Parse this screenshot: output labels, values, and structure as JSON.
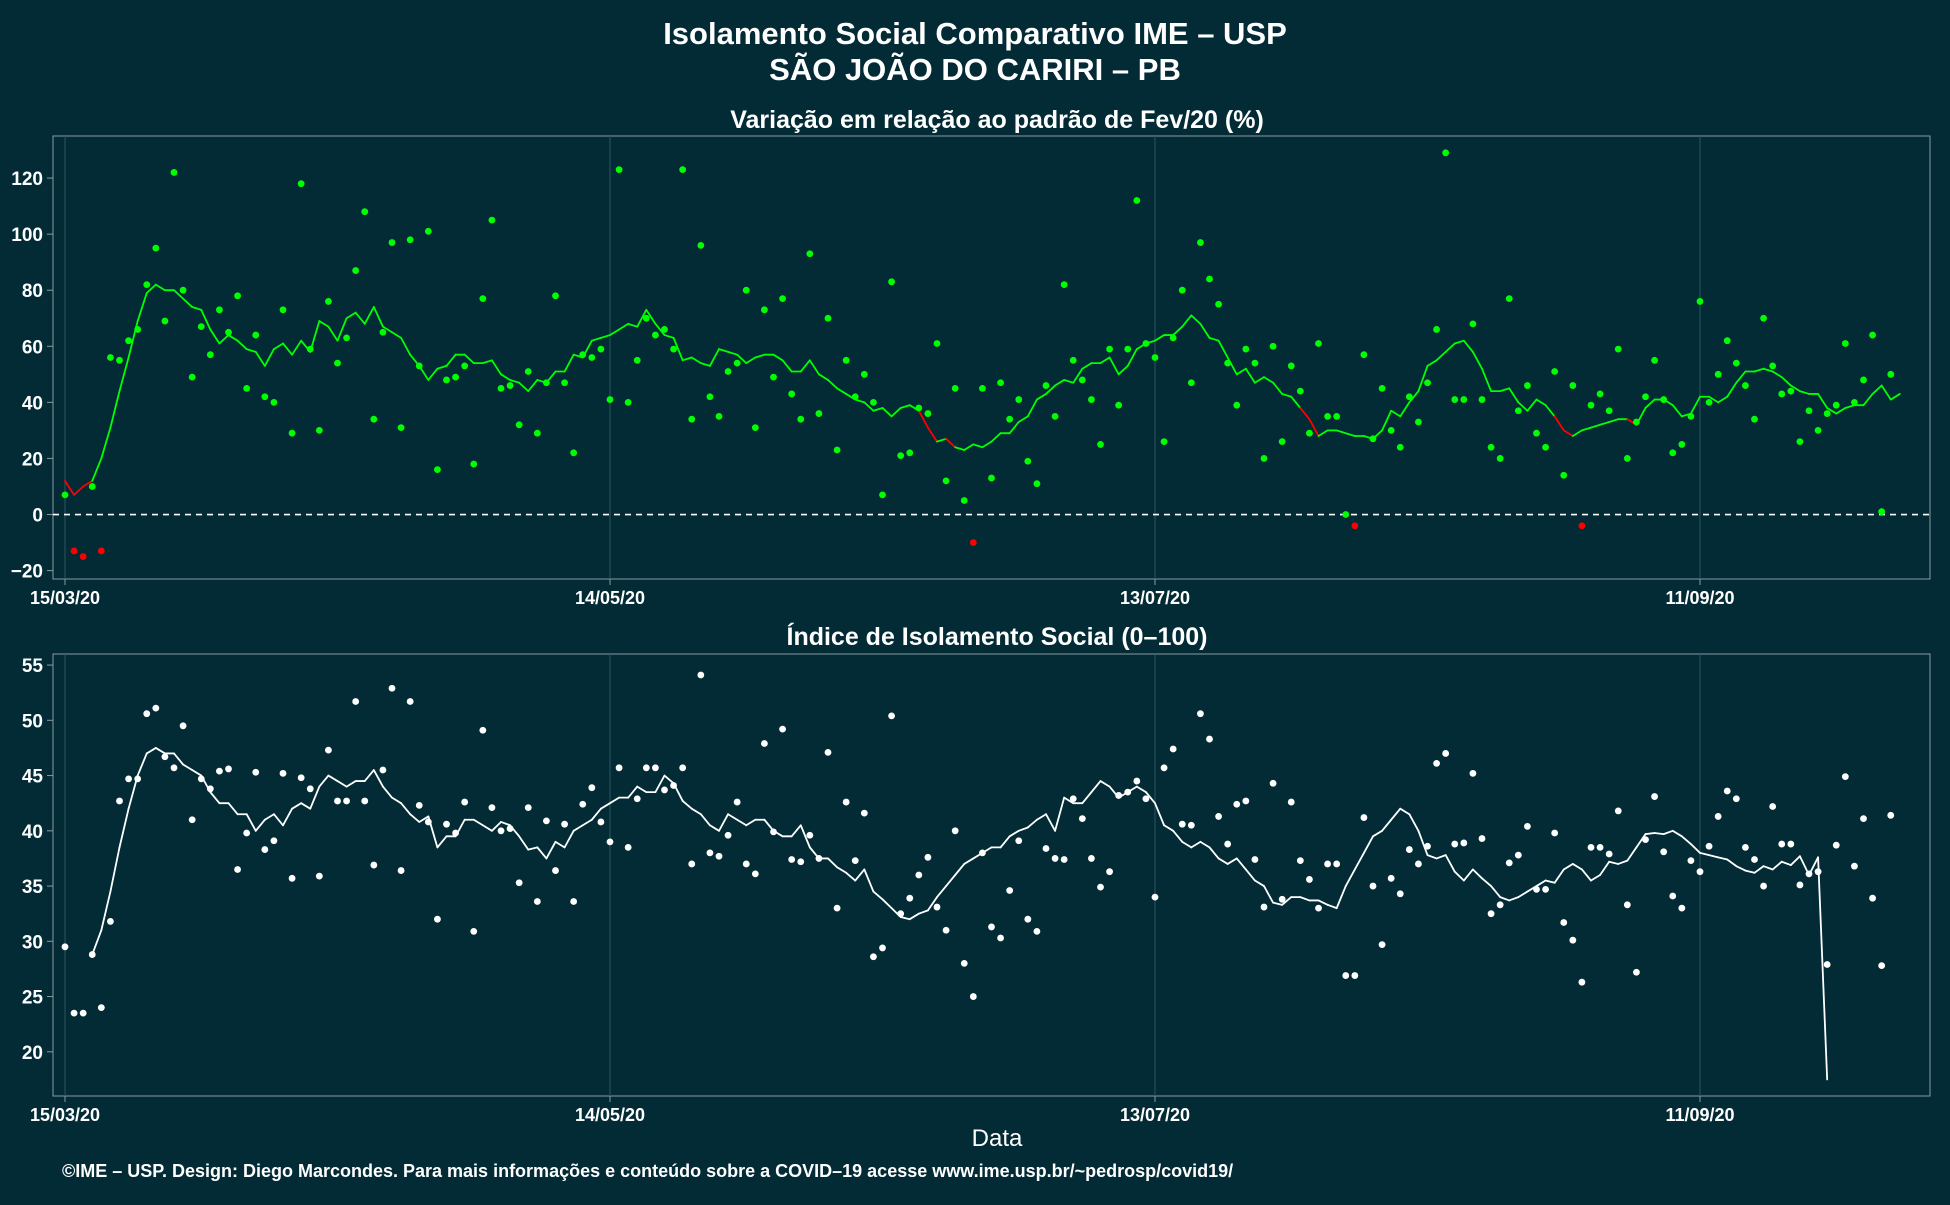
{
  "title_line1": "Isolamento Social Comparativo IME – USP",
  "title_line2": "SÃO JOÃO DO CARIRI – PB",
  "xlabel": "Data",
  "footer": "©IME – USP. Design: Diego Marcondes. Para mais informações e conteúdo sobre a COVID–19 acesse www.ime.usp.br/~pedrosp/covid19/",
  "colors": {
    "background": "#022b36",
    "panel_border": "#8a9aa0",
    "positive": "#00ff00",
    "negative": "#ff0000",
    "index": "#ffffff",
    "baseline": "#ffffff"
  },
  "chart_data": [
    {
      "type": "scatter",
      "title": "Variação em relação ao padrão de Fev/20 (%)",
      "xlabel": "Data",
      "ylabel": "",
      "x_start": "15/03/20",
      "x_ticks": [
        "15/03/20",
        "14/05/20",
        "13/07/20",
        "11/09/20"
      ],
      "x_range": [
        "15/03/20",
        "05/10/20"
      ],
      "yticks": [
        -20,
        0,
        20,
        40,
        60,
        80,
        100,
        120
      ],
      "ylim": [
        -23,
        135
      ],
      "reference_line": 0,
      "points": [
        7,
        -13,
        -15,
        10,
        -13,
        56,
        55,
        62,
        66,
        82,
        95,
        69,
        122,
        80,
        49,
        67,
        57,
        73,
        65,
        78,
        45,
        64,
        42,
        40,
        73,
        29,
        118,
        59,
        30,
        76,
        54,
        63,
        87,
        108,
        34,
        65,
        97,
        31,
        98,
        53,
        101,
        16,
        48,
        49,
        53,
        18,
        77,
        105,
        45,
        46,
        32,
        51,
        29,
        47,
        78,
        47,
        22,
        57,
        56,
        59,
        41,
        123,
        40,
        55,
        70,
        64,
        66,
        59,
        123,
        34,
        96,
        42,
        35,
        51,
        54,
        80,
        31,
        73,
        49,
        77,
        43,
        34,
        93,
        36,
        70,
        23,
        55,
        42,
        50,
        40,
        7,
        83,
        21,
        22,
        38,
        36,
        61,
        12,
        45,
        5,
        -10,
        45,
        13,
        47,
        34,
        41,
        19,
        11,
        46,
        35,
        82,
        55,
        48,
        41,
        25,
        59,
        39,
        59,
        112,
        61,
        56,
        26,
        63,
        80,
        47,
        97,
        84,
        75,
        54,
        39,
        59,
        54,
        20,
        60,
        26,
        53,
        44,
        29,
        61,
        35,
        35,
        0,
        -4,
        57,
        27,
        45,
        30,
        24,
        42,
        33,
        47,
        66,
        129,
        41,
        41,
        68,
        41,
        24,
        20,
        77,
        37,
        46,
        29,
        24,
        51,
        14,
        46,
        -4,
        39,
        43,
        37,
        59,
        20,
        33,
        42,
        55,
        41,
        22,
        25,
        35,
        76,
        40,
        50,
        62,
        54,
        46,
        34,
        70,
        53,
        43,
        44,
        26,
        37,
        30,
        36,
        39,
        61,
        40,
        48,
        64,
        1,
        50
      ],
      "moving_average": [
        12,
        7,
        10,
        12,
        20,
        31,
        44,
        56,
        69,
        79,
        82,
        80,
        80,
        77,
        74,
        73,
        66,
        61,
        64,
        62,
        59,
        58,
        53,
        59,
        61,
        57,
        62,
        58,
        69,
        67,
        62,
        70,
        72,
        68,
        74,
        67,
        65,
        63,
        57,
        53,
        48,
        52,
        53,
        57,
        57,
        54,
        54,
        55,
        50,
        48,
        47,
        44,
        48,
        47,
        51,
        51,
        57,
        56,
        62,
        63,
        64,
        66,
        68,
        67,
        73,
        68,
        64,
        63,
        55,
        56,
        54,
        53,
        59,
        58,
        57,
        54,
        56,
        57,
        57,
        55,
        51,
        51,
        55,
        50,
        48,
        45,
        43,
        41,
        40,
        37,
        38,
        35,
        38,
        39,
        37,
        31,
        26,
        27,
        24,
        23,
        25,
        24,
        26,
        29,
        29,
        33,
        35,
        41,
        43,
        46,
        48,
        47,
        52,
        54,
        54,
        56,
        50,
        53,
        59,
        61,
        62,
        64,
        64,
        67,
        71,
        68,
        63,
        62,
        56,
        50,
        52,
        47,
        49,
        47,
        43,
        42,
        38,
        34,
        28,
        30,
        30,
        29,
        28,
        28,
        27,
        30,
        37,
        35,
        40,
        44,
        53,
        55,
        58,
        61,
        62,
        58,
        52,
        44,
        44,
        45,
        40,
        37,
        41,
        39,
        35,
        30,
        28,
        30,
        31,
        32,
        33,
        34,
        34,
        32,
        38,
        41,
        41,
        39,
        35,
        36,
        42,
        42,
        40,
        42,
        47,
        51,
        51,
        52,
        51,
        49,
        46,
        44,
        43,
        43,
        38,
        36,
        38,
        39,
        39,
        43,
        46,
        41,
        43
      ]
    },
    {
      "type": "scatter",
      "title": "Índice de Isolamento Social (0–100)",
      "xlabel": "Data",
      "ylabel": "",
      "x_start": "15/03/20",
      "x_ticks": [
        "15/03/20",
        "14/05/20",
        "13/07/20",
        "11/09/20"
      ],
      "x_range": [
        "15/03/20",
        "05/10/20"
      ],
      "yticks": [
        20,
        25,
        30,
        35,
        40,
        45,
        50,
        55
      ],
      "ylim": [
        16,
        56
      ],
      "points": [
        29.5,
        23.5,
        23.5,
        28.8,
        24,
        31.8,
        42.7,
        44.7,
        44.7,
        50.6,
        51.1,
        46.7,
        45.7,
        49.5,
        41,
        44.7,
        43.8,
        45.4,
        45.6,
        36.5,
        39.8,
        45.3,
        38.3,
        39.1,
        45.2,
        35.7,
        44.8,
        43.8,
        35.9,
        47.3,
        42.7,
        42.7,
        51.7,
        42.7,
        36.9,
        45.5,
        52.9,
        36.4,
        51.7,
        42.3,
        40.8,
        32,
        40.6,
        39.8,
        42.6,
        30.9,
        49.1,
        42.1,
        40,
        40.2,
        35.3,
        42.1,
        33.6,
        40.9,
        36.4,
        40.6,
        33.6,
        42.4,
        43.9,
        40.8,
        39,
        45.7,
        38.5,
        42.9,
        45.7,
        45.7,
        43.7,
        44.1,
        45.7,
        37,
        54.1,
        38,
        37.7,
        39.6,
        42.6,
        37,
        36.1,
        47.9,
        39.9,
        49.2,
        37.4,
        37.2,
        39.6,
        37.5,
        47.1,
        33,
        42.6,
        37.3,
        41.6,
        28.6,
        29.4,
        50.4,
        32.5,
        33.9,
        36,
        37.6,
        33.1,
        31,
        40,
        28,
        25,
        38,
        31.3,
        30.3,
        34.6,
        39.1,
        32,
        30.9,
        38.4,
        37.5,
        37.4,
        42.9,
        41.1,
        37.5,
        34.9,
        36.3,
        43.2,
        43.5,
        44.5,
        42.9,
        34,
        45.7,
        47.4,
        40.6,
        40.5,
        50.6,
        48.3,
        41.3,
        38.8,
        42.4,
        42.7,
        37.4,
        33.1,
        44.3,
        33.8,
        42.6,
        37.3,
        35.6,
        33,
        37,
        37,
        26.9,
        26.9,
        41.2,
        35,
        29.7,
        35.7,
        34.3,
        38.3,
        37,
        38.6,
        46.1,
        47,
        38.8,
        38.9,
        45.2,
        39.3,
        32.5,
        33.3,
        37.1,
        37.8,
        40.4,
        34.7,
        34.7,
        39.8,
        31.7,
        30.1,
        26.3,
        38.5,
        38.5,
        37.9,
        41.8,
        33.3,
        27.2,
        39.2,
        43.1,
        38.1,
        34.1,
        33,
        37.3,
        36.3,
        38.6,
        41.3,
        43.6,
        42.9,
        38.5,
        37.4,
        35,
        42.2,
        38.8,
        38.8,
        35.1,
        36.1,
        36.3,
        27.9,
        38.7,
        44.9,
        36.8,
        41.1,
        33.9,
        27.8,
        41.4
      ],
      "moving_average": [
        null,
        null,
        null,
        28.8,
        31,
        34.5,
        38.5,
        42,
        45,
        47,
        47.5,
        47,
        47,
        46,
        45.5,
        45,
        43.5,
        42.5,
        42.5,
        41.5,
        41.5,
        40,
        41,
        41.5,
        40.5,
        42,
        42.5,
        42,
        44,
        45,
        44.5,
        44,
        44.5,
        44.5,
        45.5,
        44,
        43,
        42.5,
        41.5,
        40.8,
        41.3,
        38.5,
        39.5,
        39.5,
        41,
        41,
        40.5,
        40,
        40.8,
        40.5,
        39.5,
        38.3,
        38.5,
        37.5,
        39,
        38.5,
        40,
        40.5,
        41,
        42,
        42.5,
        43,
        43,
        44,
        43.5,
        43.5,
        45,
        44.3,
        42.7,
        42,
        41.5,
        40.5,
        40,
        41.5,
        41,
        40.5,
        41,
        41,
        40,
        39.5,
        39.5,
        40.5,
        38.5,
        37.5,
        37.5,
        36.7,
        36.2,
        35.5,
        36.5,
        34.5,
        33.8,
        33,
        32.2,
        32,
        32.5,
        32.8,
        34,
        35,
        36,
        37,
        37.5,
        38,
        38.5,
        38.5,
        39.5,
        40,
        40.3,
        41,
        41.5,
        40,
        43,
        42.5,
        42.5,
        43.5,
        44.5,
        44,
        43,
        43.5,
        44,
        43.5,
        42.5,
        40.5,
        40,
        39,
        38.5,
        39,
        38.5,
        37.5,
        37,
        37.5,
        36.5,
        35.5,
        35,
        33.5,
        33.3,
        34,
        34,
        33.7,
        33.7,
        33.3,
        33,
        35,
        36.5,
        38,
        39.5,
        40,
        41,
        42,
        41.5,
        40,
        37.8,
        37.5,
        37.8,
        36.3,
        35.5,
        36.5,
        35.7,
        35,
        34,
        33.7,
        34,
        34.5,
        35,
        35.5,
        35.3,
        36.5,
        37,
        36.5,
        35.5,
        36,
        37.2,
        37,
        37.3,
        38.5,
        39.7,
        39.8,
        39.7,
        40,
        39.5,
        38.8,
        38,
        37.8,
        37.6,
        37.4,
        36.8,
        36.4,
        36.2,
        36.8,
        36.5,
        37.2,
        36.9,
        37.7,
        36,
        37.6,
        17.5
      ]
    }
  ]
}
